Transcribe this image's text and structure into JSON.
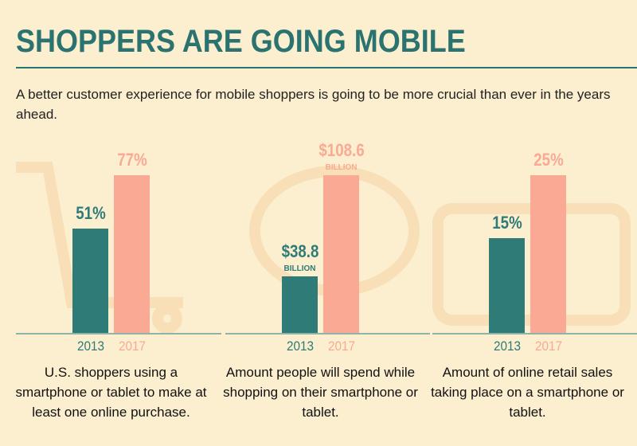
{
  "header": {
    "title": "SHOPPERS ARE GOING MOBILE",
    "subtitle": "A better customer experience for mobile shoppers is going to be more crucial than ever in the years ahead."
  },
  "chart_data": [
    {
      "type": "bar",
      "categories": [
        "2013",
        "2017"
      ],
      "values": [
        51,
        77
      ],
      "value_labels": [
        "51%",
        "77%"
      ],
      "colors": [
        "#2e7b78",
        "#f9a994"
      ],
      "caption": "U.S. shoppers using a smartphone or tablet to make at least one online purchase."
    },
    {
      "type": "bar",
      "categories": [
        "2013",
        "2017"
      ],
      "values": [
        38.8,
        108.6
      ],
      "value_labels": [
        "$38.8",
        "$108.6"
      ],
      "value_sublabels": [
        "BILLION",
        "BILLION"
      ],
      "colors": [
        "#2e7b78",
        "#f9a994"
      ],
      "caption": "Amount people will spend while shopping on their smartphone or tablet."
    },
    {
      "type": "bar",
      "categories": [
        "2013",
        "2017"
      ],
      "values": [
        15,
        25
      ],
      "value_labels": [
        "15%",
        "25%"
      ],
      "colors": [
        "#2e7b78",
        "#f9a994"
      ],
      "caption": "Amount of online retail sales taking place on a smartphone or tablet."
    }
  ]
}
